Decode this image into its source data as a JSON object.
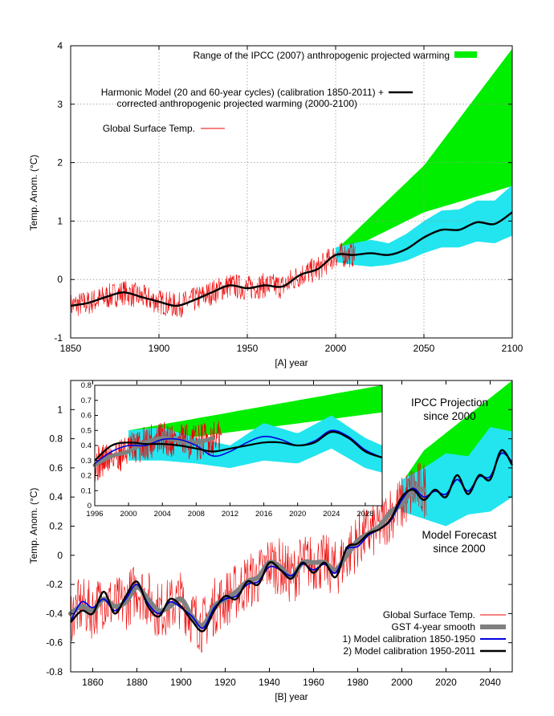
{
  "chart_data": [
    {
      "id": "A",
      "type": "line",
      "xlabel": "[A]   year",
      "ylabel": "Temp. Anom. (°C)",
      "xlim": [
        1850,
        2100
      ],
      "ylim": [
        -1,
        4
      ],
      "xticks": [
        1850,
        1900,
        1950,
        2000,
        2050,
        2100
      ],
      "yticks": [
        -1,
        0,
        1,
        2,
        3,
        4
      ],
      "grid": true,
      "legend": [
        {
          "label": "Range of the IPCC (2007) anthropogenic projected warming",
          "color": "#00ee00",
          "kind": "band"
        },
        {
          "label": "Harmonic Model (20 and 60-year cycles) (calibration 1850-2011) +",
          "label2": "corrected anthropogenic projected warming (2000-2100)",
          "color": "#000000",
          "kind": "line"
        },
        {
          "label": "Global Surface Temp.",
          "color": "#ee0000",
          "kind": "thin"
        }
      ],
      "series": [
        {
          "name": "Harmonic Model (20 and 60-year cycles) (calibration 1850-2011) + corrected anthropogenic projected warming (2000-2100)",
          "x": [
            1850,
            1860,
            1870,
            1880,
            1890,
            1900,
            1910,
            1920,
            1930,
            1940,
            1950,
            1960,
            1970,
            1980,
            1990,
            2000,
            2010,
            2020,
            2030,
            2040,
            2050,
            2060,
            2070,
            2080,
            2090,
            2100
          ],
          "y": [
            -0.45,
            -0.4,
            -0.3,
            -0.22,
            -0.3,
            -0.38,
            -0.45,
            -0.35,
            -0.22,
            -0.1,
            -0.15,
            -0.1,
            -0.12,
            0.08,
            0.18,
            0.42,
            0.42,
            0.45,
            0.42,
            0.52,
            0.72,
            0.85,
            0.85,
            0.98,
            0.95,
            1.15
          ]
        },
        {
          "name": "IPCC range upper",
          "x": [
            2000,
            2050,
            2100
          ],
          "y": [
            0.5,
            1.95,
            3.95
          ]
        },
        {
          "name": "IPCC range lower",
          "x": [
            2000,
            2050,
            2100
          ],
          "y": [
            0.4,
            1.15,
            1.6
          ]
        },
        {
          "name": "Model uncertainty upper",
          "x": [
            2000,
            2010,
            2020,
            2030,
            2040,
            2050,
            2060,
            2070,
            2080,
            2090,
            2100
          ],
          "y": [
            0.55,
            0.62,
            0.68,
            0.62,
            0.78,
            1.0,
            1.18,
            1.2,
            1.35,
            1.35,
            1.62
          ]
        },
        {
          "name": "Model uncertainty lower",
          "x": [
            2000,
            2010,
            2020,
            2030,
            2040,
            2050,
            2060,
            2070,
            2080,
            2090,
            2100
          ],
          "y": [
            0.3,
            0.25,
            0.22,
            0.25,
            0.32,
            0.45,
            0.55,
            0.55,
            0.65,
            0.62,
            0.75
          ]
        }
      ]
    },
    {
      "id": "B",
      "type": "line",
      "xlabel": "[B]   year",
      "ylabel": "Temp. Anom. (°C)",
      "xlim": [
        1850,
        2050
      ],
      "ylim": [
        -0.8,
        1.2
      ],
      "xticks": [
        1860,
        1880,
        1900,
        1920,
        1940,
        1960,
        1980,
        2000,
        2020,
        2040
      ],
      "yticks": [
        -0.8,
        -0.6,
        -0.4,
        -0.2,
        0,
        0.2,
        0.4,
        0.6,
        0.8,
        1
      ],
      "grid": false,
      "legend_position": "bottom-right",
      "legend": [
        {
          "label": "Global Surface Temp.",
          "color": "#ee0000",
          "kind": "thin"
        },
        {
          "label": "GST 4-year smooth",
          "color": "#808080",
          "kind": "thick"
        },
        {
          "label": "1) Model calibration 1850-1950",
          "color": "#0000dd",
          "kind": "line"
        },
        {
          "label": "2) Model calibration 1950-2011",
          "color": "#000000",
          "kind": "line"
        }
      ],
      "annotations": [
        {
          "text": "IPCC Projection",
          "text2": "since 2000",
          "x": 2019,
          "y": 0.98
        },
        {
          "text": "Model Forecast",
          "text2": "since 2000",
          "x": 2024,
          "y": 0.06
        }
      ],
      "series": [
        {
          "name": "2) Model calibration 1950-2011",
          "x": [
            1850,
            1855,
            1860,
            1865,
            1870,
            1875,
            1880,
            1885,
            1890,
            1895,
            1900,
            1905,
            1910,
            1915,
            1920,
            1925,
            1930,
            1935,
            1940,
            1945,
            1950,
            1955,
            1960,
            1965,
            1970,
            1975,
            1980,
            1985,
            1990,
            1995,
            2000,
            2005,
            2010,
            2015,
            2020,
            2025,
            2030,
            2035,
            2040,
            2045,
            2050
          ],
          "y": [
            -0.46,
            -0.38,
            -0.4,
            -0.25,
            -0.4,
            -0.28,
            -0.18,
            -0.35,
            -0.42,
            -0.3,
            -0.35,
            -0.45,
            -0.52,
            -0.38,
            -0.28,
            -0.3,
            -0.18,
            -0.2,
            -0.05,
            -0.1,
            -0.16,
            -0.05,
            -0.12,
            -0.05,
            -0.15,
            0.05,
            0.08,
            0.15,
            0.18,
            0.25,
            0.4,
            0.45,
            0.38,
            0.45,
            0.4,
            0.55,
            0.42,
            0.55,
            0.52,
            0.72,
            0.62
          ]
        },
        {
          "name": "1) Model calibration 1850-1950",
          "x": [
            1850,
            1855,
            1860,
            1865,
            1870,
            1875,
            1880,
            1885,
            1890,
            1895,
            1900,
            1905,
            1910,
            1915,
            1920,
            1925,
            1930,
            1935,
            1940,
            1945,
            1950,
            1955,
            1960,
            1965,
            1970,
            1975,
            1980,
            1985,
            1990,
            1995,
            2000,
            2005,
            2010,
            2015,
            2020,
            2025,
            2030,
            2035,
            2040,
            2045,
            2050
          ],
          "y": [
            -0.45,
            -0.32,
            -0.36,
            -0.3,
            -0.38,
            -0.3,
            -0.2,
            -0.33,
            -0.4,
            -0.32,
            -0.36,
            -0.42,
            -0.5,
            -0.36,
            -0.3,
            -0.28,
            -0.2,
            -0.18,
            -0.08,
            -0.1,
            -0.14,
            -0.06,
            -0.1,
            -0.06,
            -0.12,
            0.04,
            0.06,
            0.14,
            0.18,
            0.24,
            0.38,
            0.46,
            0.4,
            0.44,
            0.42,
            0.52,
            0.44,
            0.54,
            0.54,
            0.7,
            0.64
          ]
        },
        {
          "name": "GST 4-year smooth",
          "x": [
            1850,
            1855,
            1860,
            1865,
            1870,
            1875,
            1880,
            1885,
            1890,
            1895,
            1900,
            1905,
            1910,
            1915,
            1920,
            1925,
            1930,
            1935,
            1940,
            1945,
            1950,
            1955,
            1960,
            1965,
            1970,
            1975,
            1980,
            1985,
            1990,
            1995,
            2000,
            2005,
            2010
          ],
          "y": [
            -0.4,
            -0.35,
            -0.38,
            -0.3,
            -0.35,
            -0.32,
            -0.22,
            -0.3,
            -0.38,
            -0.35,
            -0.3,
            -0.42,
            -0.48,
            -0.35,
            -0.3,
            -0.25,
            -0.18,
            -0.15,
            -0.05,
            -0.08,
            -0.15,
            -0.05,
            -0.05,
            -0.05,
            -0.1,
            0.0,
            0.1,
            0.15,
            0.2,
            0.3,
            0.35,
            0.45,
            0.45
          ]
        },
        {
          "name": "IPCC Projection upper",
          "x": [
            2000,
            2010,
            2050
          ],
          "y": [
            0.5,
            0.72,
            1.2
          ]
        },
        {
          "name": "IPCC Projection lower",
          "x": [
            2000,
            2010,
            2050
          ],
          "y": [
            0.4,
            0.48,
            0.76
          ]
        },
        {
          "name": "Model Forecast upper",
          "x": [
            2000,
            2010,
            2020,
            2030,
            2040,
            2050
          ],
          "y": [
            0.52,
            0.6,
            0.7,
            0.68,
            0.88,
            0.85
          ]
        },
        {
          "name": "Model Forecast lower",
          "x": [
            2000,
            2010,
            2020,
            2030,
            2040,
            2050
          ],
          "y": [
            0.3,
            0.25,
            0.2,
            0.28,
            0.3,
            0.4
          ]
        }
      ],
      "inset": {
        "type": "line",
        "xlim": [
          1996,
          2030
        ],
        "ylim": [
          0,
          0.8
        ],
        "xticks": [
          1996,
          2000,
          2004,
          2008,
          2012,
          2016,
          2020,
          2024,
          2028
        ],
        "yticks": [
          0,
          0.1,
          0.2,
          0.3,
          0.4,
          0.5,
          0.6,
          0.7,
          0.8
        ],
        "series": [
          {
            "name": "2) Model calibration 1950-2011",
            "x": [
              1996,
              1998,
              2000,
              2002,
              2004,
              2006,
              2008,
              2010,
              2012,
              2014,
              2016,
              2018,
              2020,
              2022,
              2024,
              2026,
              2028,
              2030
            ],
            "y": [
              0.3,
              0.4,
              0.42,
              0.41,
              0.41,
              0.4,
              0.38,
              0.36,
              0.38,
              0.4,
              0.42,
              0.42,
              0.4,
              0.42,
              0.49,
              0.45,
              0.36,
              0.32
            ]
          },
          {
            "name": "1) Model calibration 1850-1950",
            "x": [
              1996,
              1998,
              2000,
              2002,
              2004,
              2006,
              2008,
              2010,
              2012,
              2014,
              2016,
              2018,
              2020,
              2022,
              2024,
              2026,
              2028,
              2030
            ],
            "y": [
              0.28,
              0.36,
              0.4,
              0.4,
              0.44,
              0.44,
              0.4,
              0.33,
              0.36,
              0.42,
              0.46,
              0.44,
              0.4,
              0.43,
              0.5,
              0.46,
              0.37,
              0.32
            ]
          },
          {
            "name": "GST 4-year smooth",
            "x": [
              1996,
              1998,
              2000,
              2002,
              2004,
              2006,
              2008,
              2010
            ],
            "y": [
              0.27,
              0.33,
              0.36,
              0.42,
              0.45,
              0.43,
              0.42,
              0.45
            ]
          },
          {
            "name": "IPCC upper",
            "x": [
              2000,
              2030
            ],
            "y": [
              0.5,
              0.8
            ]
          },
          {
            "name": "IPCC lower",
            "x": [
              2000,
              2030
            ],
            "y": [
              0.4,
              0.62
            ]
          },
          {
            "name": "Forecast upper",
            "x": [
              2000,
              2004,
              2008,
              2012,
              2016,
              2020,
              2024,
              2028,
              2030
            ],
            "y": [
              0.5,
              0.52,
              0.45,
              0.4,
              0.55,
              0.48,
              0.6,
              0.45,
              0.4
            ]
          },
          {
            "name": "Forecast lower",
            "x": [
              2000,
              2004,
              2008,
              2012,
              2016,
              2020,
              2024,
              2028,
              2030
            ],
            "y": [
              0.3,
              0.3,
              0.28,
              0.25,
              0.3,
              0.28,
              0.38,
              0.25,
              0.22
            ]
          }
        ]
      }
    }
  ]
}
